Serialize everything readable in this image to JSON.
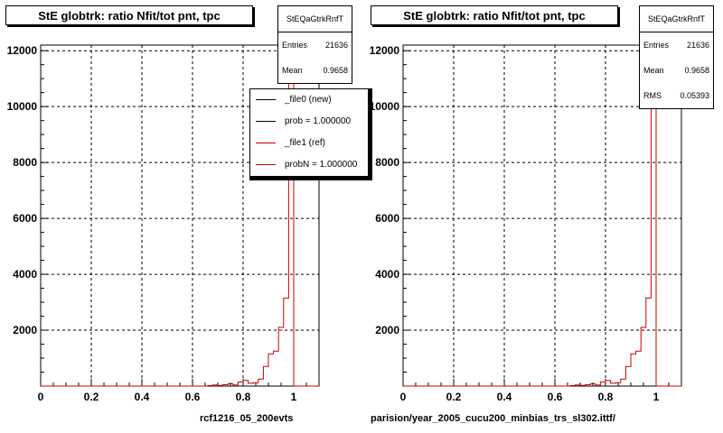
{
  "chart_data": [
    {
      "type": "histogram",
      "title": "StE globtrk: ratio Nfit/tot pnt, tpc",
      "xlabel": "rcf1216_05_200evts",
      "ylabel": "",
      "xlim": [
        0,
        1.1
      ],
      "ylim": [
        0,
        12200
      ],
      "x_ticks": [
        "0",
        "0.2",
        "0.4",
        "0.6",
        "0.8",
        "1"
      ],
      "y_ticks": [
        "2000",
        "4000",
        "6000",
        "8000",
        "10000",
        "12000"
      ],
      "grid": true,
      "stats": {
        "name": "StEQaGtrkRnfT",
        "entries_label": "Entries",
        "entries": "21636",
        "mean_label": "Mean",
        "mean": "0.9658"
      },
      "legend": {
        "placement": "top-right",
        "entries": [
          {
            "label": "_file0 (new)",
            "color": "#000000"
          },
          {
            "label": "prob = 1.000000",
            "color": "#000000"
          },
          {
            "label": "_file1 (ref)",
            "color": "#cc0000"
          },
          {
            "label": "probN = 1.000000",
            "color": "#cc0000"
          }
        ]
      },
      "series": [
        {
          "color": "#cc0000",
          "bins": [
            [
              0.66,
              0.68,
              20
            ],
            [
              0.68,
              0.7,
              40
            ],
            [
              0.7,
              0.72,
              25
            ],
            [
              0.72,
              0.74,
              50
            ],
            [
              0.74,
              0.76,
              80
            ],
            [
              0.76,
              0.78,
              40
            ],
            [
              0.78,
              0.8,
              150
            ],
            [
              0.8,
              0.82,
              200
            ],
            [
              0.82,
              0.84,
              100
            ],
            [
              0.84,
              0.86,
              120
            ],
            [
              0.86,
              0.88,
              250
            ],
            [
              0.88,
              0.9,
              700
            ],
            [
              0.9,
              0.92,
              1150
            ],
            [
              0.92,
              0.94,
              1250
            ],
            [
              0.94,
              0.96,
              2100
            ],
            [
              0.96,
              0.98,
              3150
            ],
            [
              0.98,
              1.0,
              11650
            ],
            [
              1.0,
              1.02,
              0
            ]
          ]
        }
      ]
    },
    {
      "type": "histogram",
      "title": "StE globtrk: ratio Nfit/tot pnt, tpc",
      "xlabel": "parision/year_2005_cucu200_minbias_trs_sl302.ittf/",
      "ylabel": "",
      "xlim": [
        0,
        1.1
      ],
      "ylim": [
        0,
        12200
      ],
      "x_ticks": [
        "0",
        "0.2",
        "0.4",
        "0.6",
        "0.8",
        "1"
      ],
      "y_ticks": [
        "2000",
        "4000",
        "6000",
        "8000",
        "10000",
        "12000"
      ],
      "grid": true,
      "stats": {
        "name": "StEQaGtrkRnfT",
        "entries_label": "Entries",
        "entries": "21636",
        "mean_label": "Mean",
        "mean": "0.9658",
        "rms_label": "RMS",
        "rms": "0.05393"
      },
      "series": [
        {
          "color": "#cc0000",
          "bins": [
            [
              0.66,
              0.68,
              20
            ],
            [
              0.68,
              0.7,
              40
            ],
            [
              0.7,
              0.72,
              25
            ],
            [
              0.72,
              0.74,
              50
            ],
            [
              0.74,
              0.76,
              80
            ],
            [
              0.76,
              0.78,
              40
            ],
            [
              0.78,
              0.8,
              150
            ],
            [
              0.8,
              0.82,
              200
            ],
            [
              0.82,
              0.84,
              100
            ],
            [
              0.84,
              0.86,
              120
            ],
            [
              0.86,
              0.88,
              250
            ],
            [
              0.88,
              0.9,
              700
            ],
            [
              0.9,
              0.92,
              1150
            ],
            [
              0.92,
              0.94,
              1250
            ],
            [
              0.94,
              0.96,
              2100
            ],
            [
              0.96,
              0.98,
              3150
            ],
            [
              0.98,
              1.0,
              11650
            ],
            [
              1.0,
              1.02,
              0
            ]
          ]
        }
      ]
    }
  ]
}
